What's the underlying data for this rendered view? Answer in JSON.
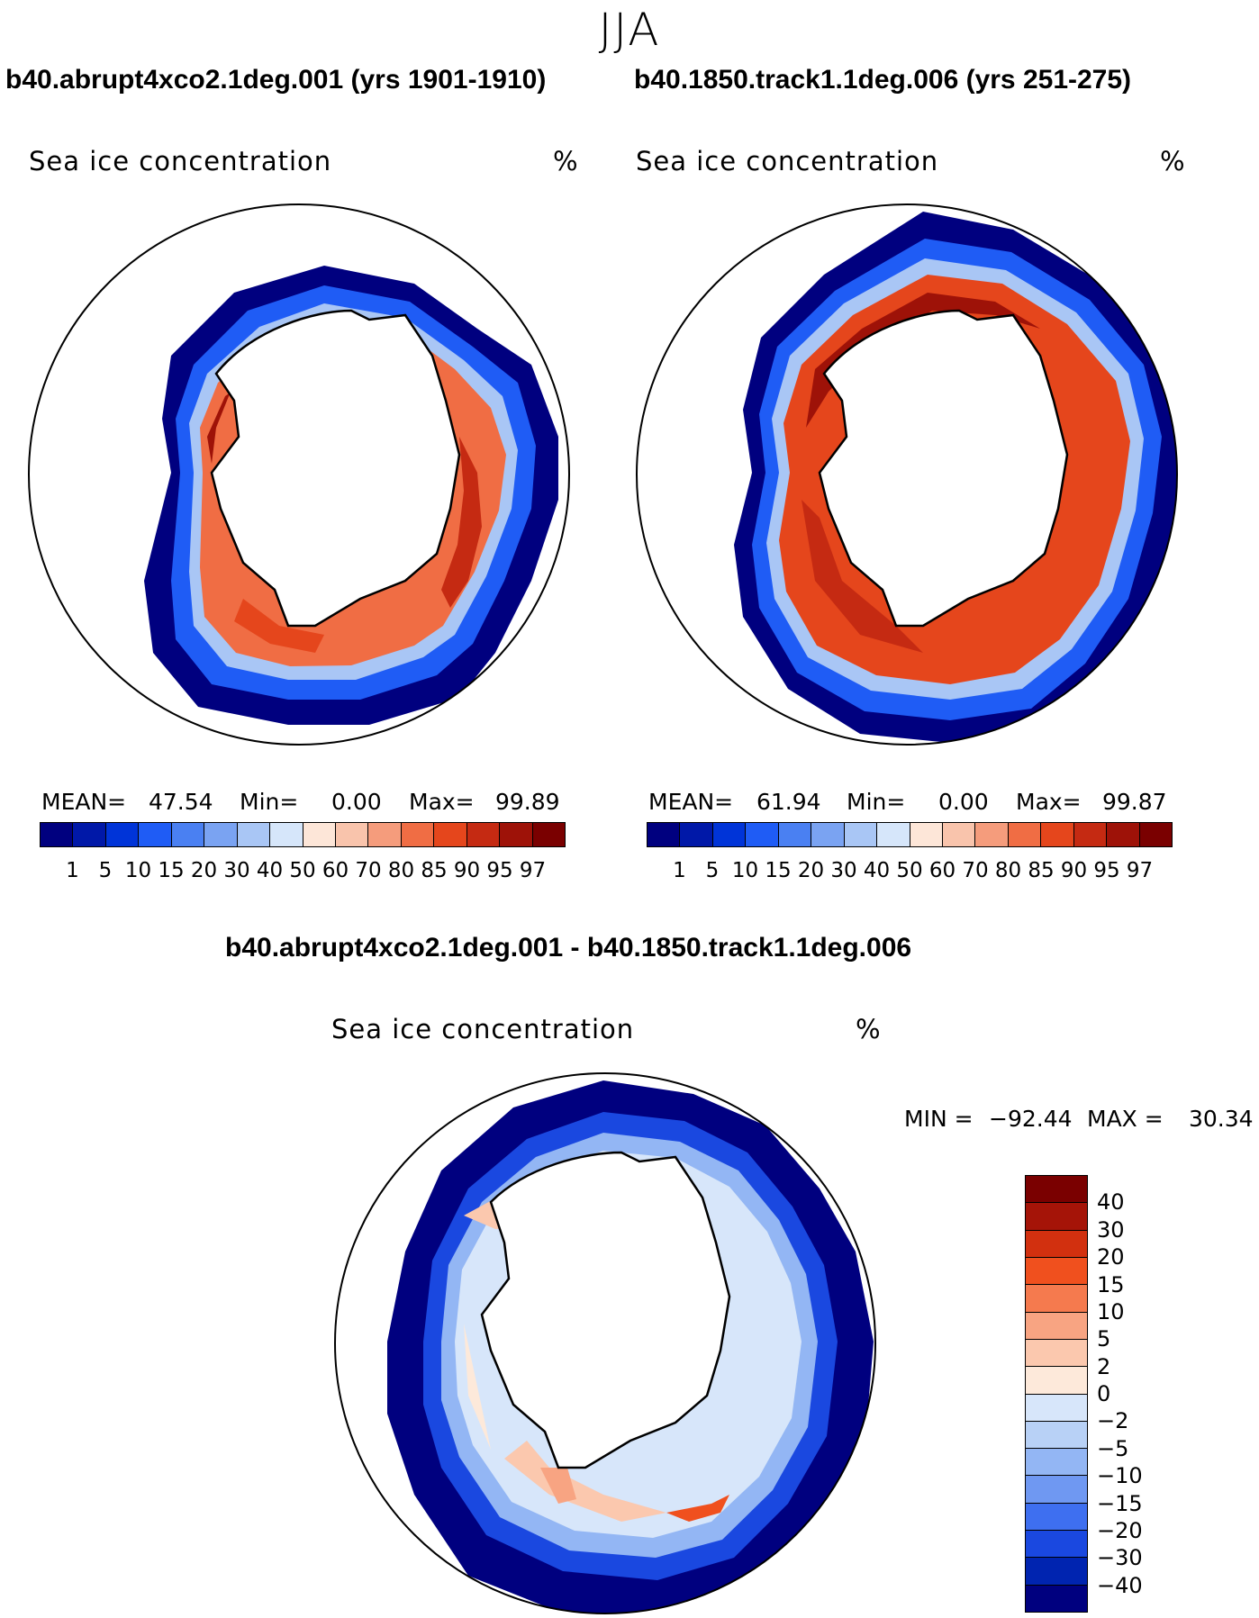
{
  "figure": {
    "season": "JJA",
    "panel_left": {
      "title": "b40.abrupt4xco2.1deg.001 (yrs 1901-1910)",
      "variable": "Sea ice concentration",
      "units": "%",
      "mean_label": "MEAN=",
      "mean": "47.54",
      "min_label": "Min=",
      "min": "0.00",
      "max_label": "Max=",
      "max": "99.89"
    },
    "panel_right": {
      "title": "b40.1850.track1.1deg.006 (yrs 251-275)",
      "variable": "Sea ice concentration",
      "units": "%",
      "mean_label": "MEAN=",
      "mean": "61.94",
      "min_label": "Min=",
      "min": "0.00",
      "max_label": "Max=",
      "max": "99.87"
    },
    "panel_diff": {
      "title": "b40.abrupt4xco2.1deg.001 - b40.1850.track1.1deg.006",
      "variable": "Sea ice concentration",
      "units": "%",
      "min_label": "MIN =",
      "min": "−92.44",
      "max_label": "MAX =",
      "max": "30.34"
    }
  },
  "chart_data": [
    {
      "type": "map",
      "projection": "south polar stereographic",
      "title": "b40.abrupt4xco2.1deg.001 (yrs 1901-1910)",
      "variable": "Sea ice concentration (%)",
      "stats": {
        "mean": 47.54,
        "min": 0.0,
        "max": 99.89
      },
      "colorbar_levels": [
        "1",
        "5",
        "10",
        "15",
        "20",
        "30",
        "40",
        "50",
        "60",
        "70",
        "80",
        "85",
        "90",
        "95",
        "97"
      ],
      "colorbar_colors": [
        "#00007f",
        "#0018a8",
        "#0034d8",
        "#1f5cf5",
        "#4a80f2",
        "#7aa3f2",
        "#a9c6f5",
        "#d6e6fa",
        "#fde6d8",
        "#f9c4ac",
        "#f59c7c",
        "#f06d44",
        "#e5461c",
        "#c52a12",
        "#9e1208",
        "#7a0000"
      ]
    },
    {
      "type": "map",
      "projection": "south polar stereographic",
      "title": "b40.1850.track1.1deg.006 (yrs 251-275)",
      "variable": "Sea ice concentration (%)",
      "stats": {
        "mean": 61.94,
        "min": 0.0,
        "max": 99.87
      },
      "colorbar_levels": [
        "1",
        "5",
        "10",
        "15",
        "20",
        "30",
        "40",
        "50",
        "60",
        "70",
        "80",
        "85",
        "90",
        "95",
        "97"
      ],
      "colorbar_colors": [
        "#00007f",
        "#0018a8",
        "#0034d8",
        "#1f5cf5",
        "#4a80f2",
        "#7aa3f2",
        "#a9c6f5",
        "#d6e6fa",
        "#fde6d8",
        "#f9c4ac",
        "#f59c7c",
        "#f06d44",
        "#e5461c",
        "#c52a12",
        "#9e1208",
        "#7a0000"
      ]
    },
    {
      "type": "map",
      "projection": "south polar stereographic",
      "title": "b40.abrupt4xco2.1deg.001 - b40.1850.track1.1deg.006",
      "variable": "Sea ice concentration difference (%)",
      "stats": {
        "min": -92.44,
        "max": 30.34
      },
      "colorbar_levels": [
        "40",
        "30",
        "20",
        "15",
        "10",
        "5",
        "2",
        "0",
        "−2",
        "−5",
        "−10",
        "−15",
        "−20",
        "−30",
        "−40"
      ],
      "colorbar_colors": [
        "#7a0000",
        "#a51408",
        "#d2300f",
        "#f0501e",
        "#f57a4e",
        "#f8a482",
        "#fbc8ae",
        "#fde9da",
        "#d7e6fa",
        "#b8d1f6",
        "#93b6f4",
        "#6f98f2",
        "#3e6ff0",
        "#1a48e0",
        "#0024b0",
        "#00007f"
      ]
    }
  ]
}
